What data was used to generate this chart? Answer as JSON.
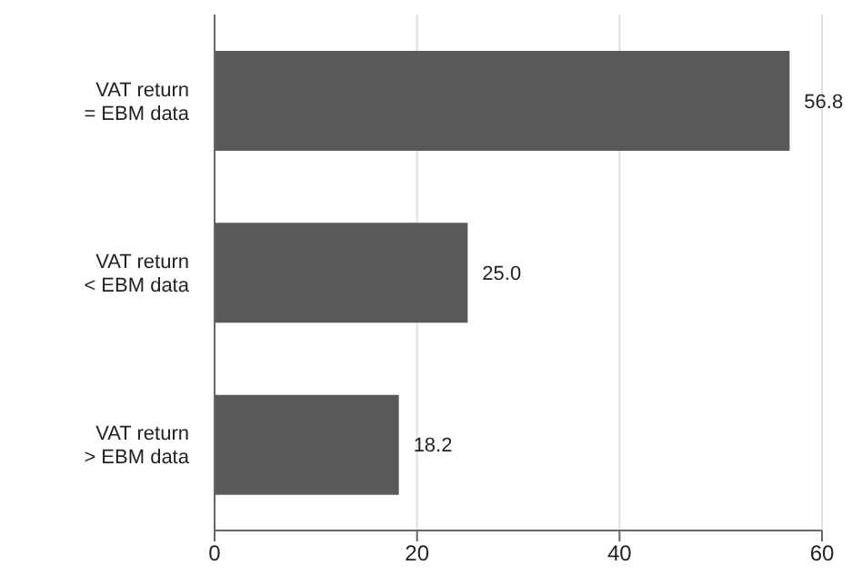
{
  "chart_data": {
    "type": "bar",
    "orientation": "horizontal",
    "categories": [
      "VAT return = EBM data",
      "VAT return < EBM data",
      "VAT return > EBM data"
    ],
    "values": [
      56.8,
      25.0,
      18.2
    ],
    "value_labels": [
      "56.8",
      "25.0",
      "18.2"
    ],
    "color": "#595959",
    "xlim": [
      0,
      60
    ],
    "xticks": [
      0,
      20,
      40,
      60
    ],
    "grid": "x",
    "legend": false
  }
}
